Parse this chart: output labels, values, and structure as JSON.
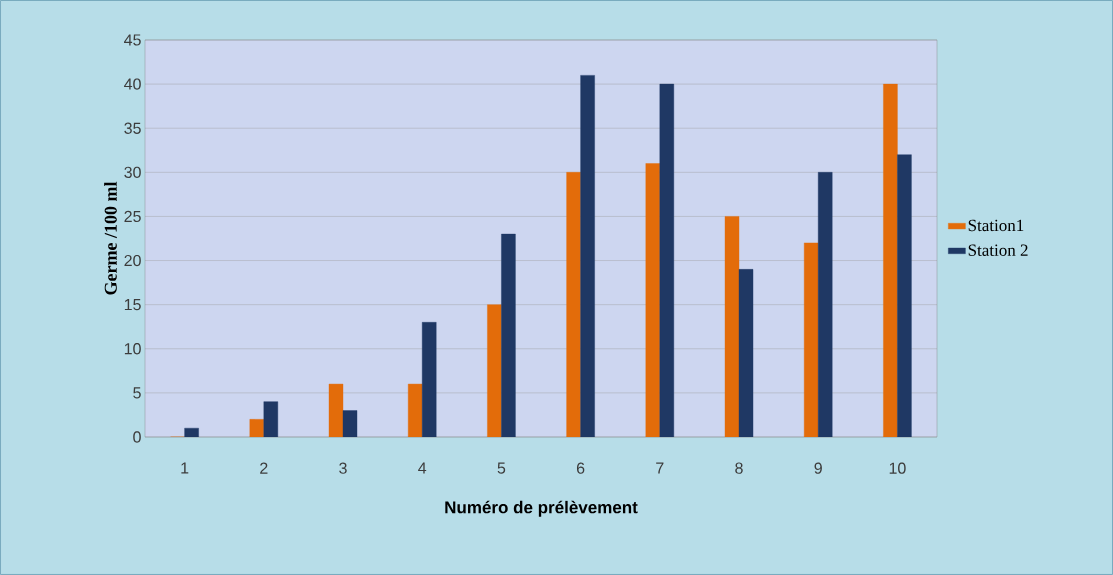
{
  "chart_data": {
    "type": "bar",
    "xlabel": "Numéro de prélèvement",
    "ylabel": "Germe /100 ml",
    "categories": [
      "1",
      "2",
      "3",
      "4",
      "5",
      "6",
      "7",
      "8",
      "9",
      "10"
    ],
    "series": [
      {
        "name": "Station1",
        "color": "#e36c0a",
        "values": [
          0,
          2,
          6,
          6,
          15,
          30,
          31,
          25,
          22,
          40
        ]
      },
      {
        "name": "Station 2",
        "color": "#1f3864",
        "values": [
          1,
          4,
          3,
          13,
          23,
          41,
          40,
          19,
          30,
          32
        ]
      }
    ],
    "ylim": [
      0,
      45
    ],
    "yticks": [
      0,
      5,
      10,
      15,
      20,
      25,
      30,
      35,
      40,
      45
    ],
    "grid": "y",
    "legend": "right"
  }
}
